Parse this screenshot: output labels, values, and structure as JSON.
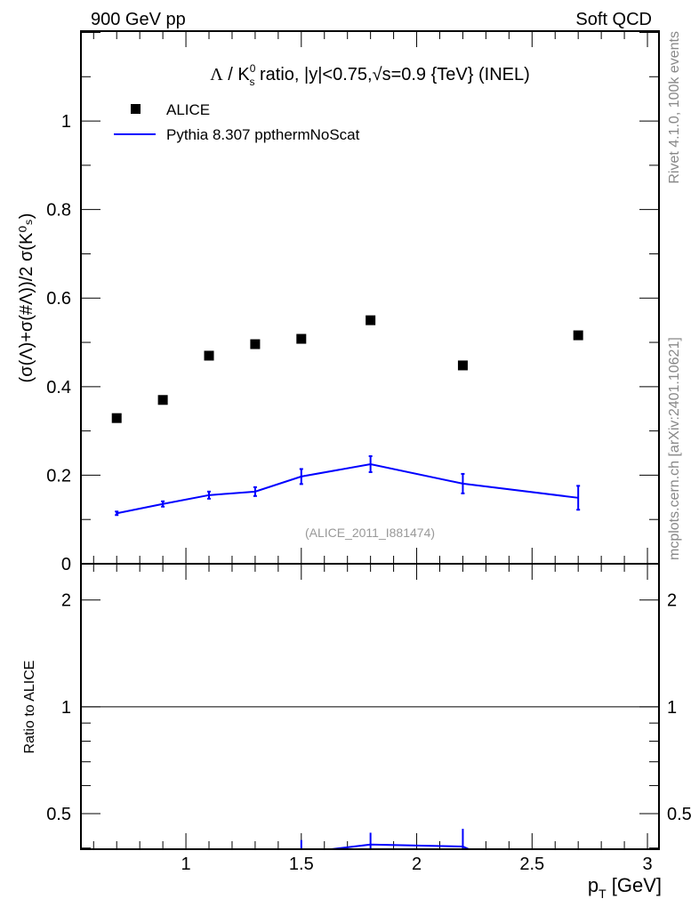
{
  "header": {
    "left": "900 GeV pp",
    "right": "Soft QCD"
  },
  "side_labels": {
    "rivet": "Rivet 4.1.0,  100k events",
    "mcplots": "mcplots.cern.ch [arXiv:2401.10621]"
  },
  "watermark": "(ALICE_2011_I881474)",
  "colors": {
    "data": "#000000",
    "mc": "#0000ff",
    "side": "#888888"
  },
  "chart_data": [
    {
      "type": "scatter",
      "title_parts": {
        "lambda": "Λ",
        "slash": " / K",
        "sup": "0",
        "sub": "s",
        "rest1": " ratio, |y|<0.75,",
        "sqrt": "√",
        "rest2": "s=0.9 {TeV} (INEL)"
      },
      "ylabel": "(σ(Λ)+σ(#Λ))/2 σ(K⁰ₛ)",
      "xlim": [
        0.545,
        3.05
      ],
      "ylim": [
        0,
        1.203
      ],
      "yticks": [
        0,
        0.2,
        0.4,
        0.6,
        0.8,
        1
      ],
      "ytick_labels": [
        "0",
        "0.2",
        "0.4",
        "0.6",
        "0.8",
        "1"
      ],
      "legend": {
        "placement": "top-left",
        "entries": [
          "ALICE",
          "Pythia 8.307 ppthermNoScat"
        ]
      },
      "x": [
        0.7,
        0.9,
        1.1,
        1.3,
        1.5,
        1.8,
        2.2,
        2.7
      ],
      "series": [
        {
          "name": "ALICE",
          "style": "markers",
          "values": [
            0.329,
            0.37,
            0.47,
            0.496,
            0.508,
            0.55,
            0.448,
            0.516
          ]
        },
        {
          "name": "Pythia 8.307 ppthermNoScat",
          "style": "line",
          "values": [
            0.114,
            0.135,
            0.155,
            0.163,
            0.197,
            0.225,
            0.181,
            0.149
          ],
          "errors": [
            0.004,
            0.006,
            0.008,
            0.01,
            0.017,
            0.018,
            0.022,
            0.027
          ]
        }
      ]
    },
    {
      "type": "line",
      "ylabel": "Ratio to ALICE",
      "xlabel": "p_T [GeV]",
      "xlabel_main": "p",
      "xlabel_sub": "T",
      "xlabel_unit": " [GeV]",
      "yscale": "log",
      "ylim": [
        0.397,
        2.53
      ],
      "yticks": [
        0.5,
        1,
        2
      ],
      "ytick_labels": [
        "0.5",
        "1",
        "2"
      ],
      "xticks": [
        1,
        1.5,
        2,
        2.5,
        3
      ],
      "xtick_labels": [
        "1",
        "1.5",
        "2",
        "2.5",
        "3"
      ],
      "reference_line": 1
    }
  ]
}
